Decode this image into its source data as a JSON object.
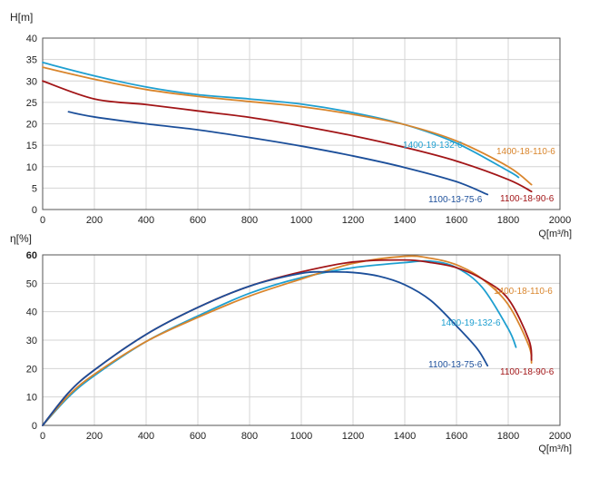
{
  "chart_data": [
    {
      "type": "line",
      "ylabel": "H[m]",
      "xlabel": "Q[m³/h]",
      "xlim": [
        0,
        2000
      ],
      "ylim": [
        0,
        40
      ],
      "x_ticks": [
        "0",
        "200",
        "400",
        "600",
        "800",
        "1000",
        "1200",
        "1400",
        "1600",
        "1800",
        "2000"
      ],
      "y_ticks": [
        "0",
        "5",
        "10",
        "15",
        "20",
        "25",
        "30",
        "35",
        "40"
      ],
      "grid": true,
      "series": [
        {
          "name": "1400-19-132-6",
          "color": "#1e9fd0",
          "x": [
            0,
            200,
            400,
            600,
            800,
            1000,
            1200,
            1400,
            1600,
            1800,
            1840
          ],
          "y": [
            34.3,
            31.2,
            28.6,
            26.8,
            25.8,
            24.6,
            22.6,
            19.8,
            15.5,
            9.0,
            7.5
          ]
        },
        {
          "name": "1400-18-110-6",
          "color": "#d9852c",
          "x": [
            0,
            200,
            400,
            600,
            800,
            1000,
            1200,
            1400,
            1600,
            1800,
            1890
          ],
          "y": [
            33.2,
            30.4,
            28.0,
            26.4,
            25.2,
            24.0,
            22.2,
            19.8,
            16.0,
            10.0,
            5.8
          ]
        },
        {
          "name": "1100-18-90-6",
          "color": "#a21517",
          "x": [
            0,
            200,
            400,
            600,
            800,
            1000,
            1200,
            1400,
            1600,
            1800,
            1890
          ],
          "y": [
            30.0,
            25.8,
            24.5,
            23.0,
            21.5,
            19.5,
            17.2,
            14.5,
            11.3,
            7.0,
            4.2
          ]
        },
        {
          "name": "1100-13-75-6",
          "color": "#1c4f9a",
          "x": [
            100,
            200,
            400,
            600,
            800,
            1000,
            1200,
            1400,
            1600,
            1720
          ],
          "y": [
            22.8,
            21.6,
            20.0,
            18.6,
            16.8,
            14.8,
            12.5,
            9.8,
            6.5,
            3.5
          ]
        }
      ]
    },
    {
      "type": "line",
      "ylabel": "η[%]",
      "xlabel": "Q[m³/h]",
      "xlim": [
        0,
        2000
      ],
      "ylim": [
        0,
        60
      ],
      "x_ticks": [
        "0",
        "200",
        "400",
        "600",
        "800",
        "1000",
        "1200",
        "1400",
        "1600",
        "1800",
        "2000"
      ],
      "y_ticks": [
        "0",
        "10",
        "20",
        "30",
        "40",
        "50",
        "60"
      ],
      "grid": true,
      "series": [
        {
          "name": "1400-19-132-6",
          "color": "#1e9fd0",
          "x": [
            0,
            100,
            200,
            400,
            600,
            800,
            1000,
            1200,
            1400,
            1500,
            1600,
            1700,
            1800,
            1830
          ],
          "y": [
            0,
            10,
            17.5,
            29.5,
            38.5,
            46.5,
            52.0,
            55.5,
            57.3,
            57.8,
            55.5,
            48.5,
            34.0,
            27.5
          ]
        },
        {
          "name": "1400-18-110-6",
          "color": "#d9852c",
          "x": [
            0,
            100,
            200,
            400,
            600,
            800,
            1000,
            1200,
            1400,
            1500,
            1600,
            1700,
            1800,
            1880,
            1890
          ],
          "y": [
            0,
            10.5,
            18.0,
            29.5,
            38.0,
            45.5,
            51.5,
            57.0,
            59.5,
            58.8,
            56.5,
            51.5,
            42.5,
            28.0,
            22.0
          ]
        },
        {
          "name": "1100-18-90-6",
          "color": "#a21517",
          "x": [
            0,
            100,
            200,
            400,
            600,
            800,
            1000,
            1200,
            1400,
            1500,
            1600,
            1700,
            1800,
            1880,
            1890
          ],
          "y": [
            0,
            11.5,
            19.5,
            32.0,
            41.5,
            49.0,
            54.0,
            57.5,
            58.2,
            57.3,
            55.5,
            51.5,
            44.5,
            30.0,
            23.0
          ]
        },
        {
          "name": "1100-13-75-6",
          "color": "#1c4f9a",
          "x": [
            0,
            100,
            200,
            400,
            600,
            800,
            1000,
            1100,
            1200,
            1300,
            1400,
            1500,
            1600,
            1680,
            1720
          ],
          "y": [
            0,
            11.5,
            19.5,
            32.0,
            41.5,
            49.0,
            53.5,
            54.0,
            53.8,
            52.5,
            49.5,
            44.0,
            35.0,
            27.0,
            21.0
          ]
        }
      ]
    }
  ]
}
